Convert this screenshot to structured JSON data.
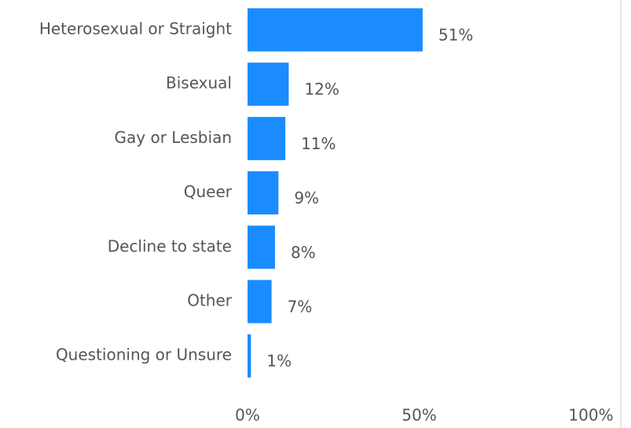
{
  "chart_data": {
    "type": "bar",
    "orientation": "horizontal",
    "categories": [
      "Heterosexual or Straight",
      "Bisexual",
      "Gay or Lesbian",
      "Queer",
      "Decline to state",
      "Other",
      "Questioning or Unsure"
    ],
    "values": [
      51,
      12,
      11,
      9,
      8,
      7,
      1
    ],
    "value_labels": [
      "51%",
      "12%",
      "11%",
      "9%",
      "8%",
      "7%",
      "1%"
    ],
    "color": "#1a8cff",
    "xlim": [
      0,
      100
    ],
    "xticks": [
      {
        "value": 0,
        "label": "0%"
      },
      {
        "value": 50,
        "label": "50%"
      },
      {
        "value": 100,
        "label": "100%"
      }
    ]
  }
}
